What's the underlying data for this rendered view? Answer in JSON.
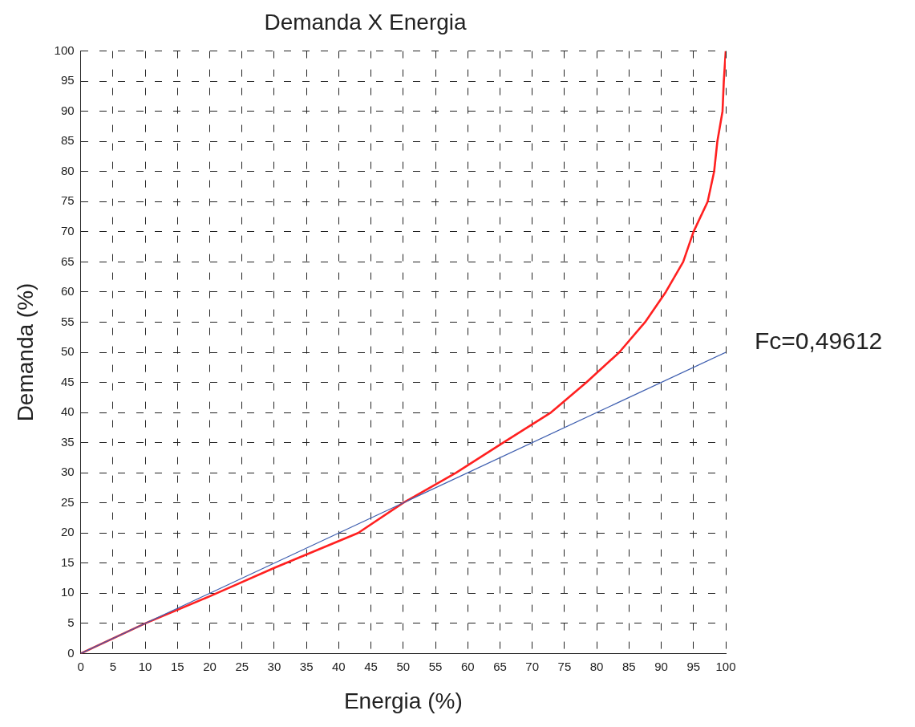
{
  "chart_data": {
    "type": "line",
    "title": "Demanda X Energia",
    "xlabel": "Energia (%)",
    "ylabel": "Demanda (%)",
    "xlim": [
      0,
      100
    ],
    "ylim": [
      0,
      100
    ],
    "xticks": [
      0,
      5,
      10,
      15,
      20,
      25,
      30,
      35,
      40,
      45,
      50,
      55,
      60,
      65,
      70,
      75,
      80,
      85,
      90,
      95,
      100
    ],
    "yticks": [
      0,
      5,
      10,
      15,
      20,
      25,
      30,
      35,
      40,
      45,
      50,
      55,
      60,
      65,
      70,
      75,
      80,
      85,
      90,
      95,
      100
    ],
    "grid": true,
    "legend": false,
    "marker": "none",
    "line_style": "solid",
    "series": [
      {
        "color": "#4060b0",
        "x": [
          0,
          100
        ],
        "values": [
          0,
          50
        ]
      },
      {
        "color": "#ff2020",
        "x": [
          0,
          10,
          20,
          30,
          43,
          50,
          58.2,
          65.5,
          72.9,
          78.4,
          83.5,
          87.5,
          90.7,
          93.4,
          95,
          97.2,
          98.2,
          98.7,
          99.5,
          99.7,
          100
        ],
        "values": [
          0,
          5,
          9.5,
          14.2,
          20,
          25,
          30,
          35,
          40,
          45,
          50,
          55,
          60,
          65,
          70,
          75,
          80,
          85,
          90,
          95,
          100
        ]
      }
    ],
    "annotations": [
      {
        "text": "Fc=0,49612",
        "x": 100,
        "y": 50
      }
    ]
  }
}
